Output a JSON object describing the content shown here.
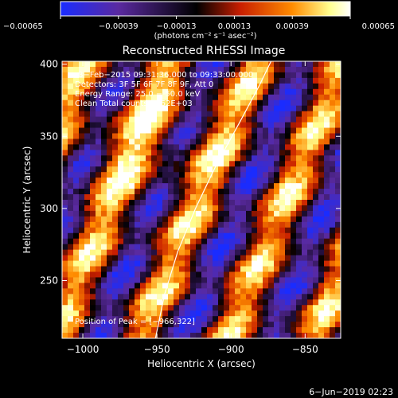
{
  "chart_data": {
    "type": "heatmap",
    "title": "Reconstructed RHESSI Image",
    "xlabel": "Heliocentric X (arcsec)",
    "ylabel": "Heliocentric Y (arcsec)",
    "xlim": [
      -1014,
      -826
    ],
    "ylim": [
      210,
      402
    ],
    "x_ticks": [
      {
        "value": -1000,
        "label": "−1000"
      },
      {
        "value": -950,
        "label": "−950"
      },
      {
        "value": -900,
        "label": "−900"
      },
      {
        "value": -850,
        "label": "−850"
      }
    ],
    "y_ticks": [
      {
        "value": 250,
        "label": "250"
      },
      {
        "value": 300,
        "label": "300"
      },
      {
        "value": 350,
        "label": "350"
      },
      {
        "value": 400,
        "label": "400"
      }
    ],
    "colorbar": {
      "range": [
        -0.00065,
        0.00065
      ],
      "ticks": [
        {
          "value": -0.00065,
          "label": "−0.00065"
        },
        {
          "value": -0.00039,
          "label": "−0.00039"
        },
        {
          "value": -0.00013,
          "label": "−0.00013"
        },
        {
          "value": 0.00013,
          "label": "0.00013"
        },
        {
          "value": 0.00039,
          "label": "0.00039"
        },
        {
          "value": 0.00065,
          "label": "0.00065"
        }
      ],
      "unit_label": "(photons cm⁻² s⁻¹ asec⁻²)",
      "colors": [
        "#1a2cff",
        "#5a2aa0",
        "#000000",
        "#c81e00",
        "#ff8c00",
        "#ffff90",
        "#ffffff"
      ]
    },
    "annotations": [
      "8−Feb−2015 09:31:36.000 to 09:33:00.000",
      "Detectors: 3F 5F 6F 7F 8F 9F, Att 0",
      "Energy Range: 25.0 − 50.0 keV",
      "Clean     Total counts: 1.62E+03"
    ],
    "peak_label": "Position of Peak = [−966,322]",
    "peak": [
      -966,
      322
    ],
    "limb_curve": [
      [
        -951,
        210
      ],
      [
        -945,
        240
      ],
      [
        -936,
        270
      ],
      [
        -924,
        300
      ],
      [
        -910,
        330
      ],
      [
        -894,
        360
      ],
      [
        -881,
        385
      ],
      [
        -873,
        402
      ]
    ],
    "grid": false,
    "legend": "none"
  },
  "footer": {
    "date": "6−Jun−2019 02:23"
  }
}
